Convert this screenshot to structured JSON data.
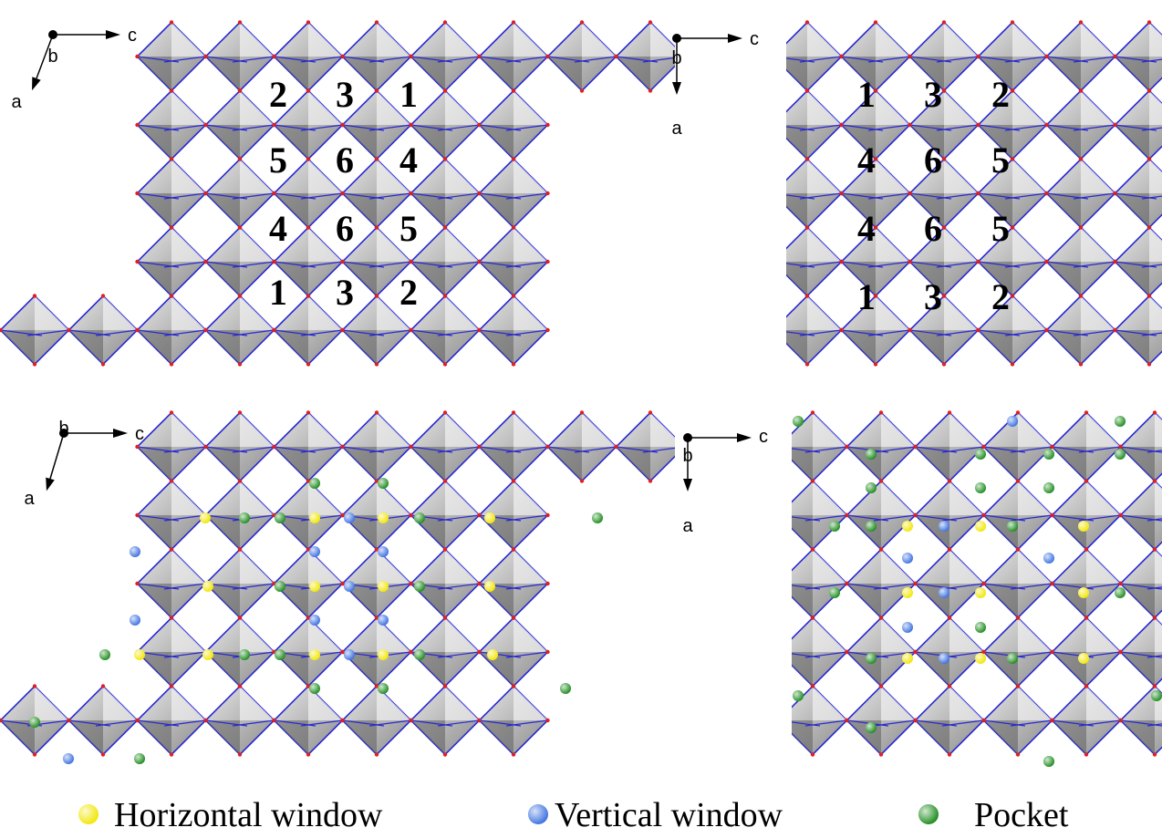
{
  "panels": [
    {
      "axes": {
        "right": "c",
        "center": "b",
        "down": "a"
      },
      "labels": [
        [
          "2",
          "3",
          "1"
        ],
        [
          "5",
          "6",
          "4"
        ],
        [
          "4",
          "6",
          "5"
        ],
        [
          "1",
          "3",
          "2"
        ]
      ]
    },
    {
      "axes": {
        "right": "c",
        "center": "b",
        "down": "a"
      },
      "labels": [
        [
          "1",
          "3",
          "2"
        ],
        [
          "4",
          "6",
          "5"
        ],
        [
          "4",
          "6",
          "5"
        ],
        [
          "1",
          "3",
          "2"
        ]
      ]
    },
    {
      "axes": {
        "right": "c",
        "center": "b",
        "down": "a"
      }
    },
    {
      "axes": {
        "right": "c",
        "center": "b",
        "down": "a"
      }
    }
  ],
  "legend": [
    {
      "label": "Horizontal window",
      "color": "#f2e600"
    },
    {
      "label": "Vertical window",
      "color": "#3a6fe0"
    },
    {
      "label": "Pocket",
      "color": "#1a8a1a"
    }
  ]
}
